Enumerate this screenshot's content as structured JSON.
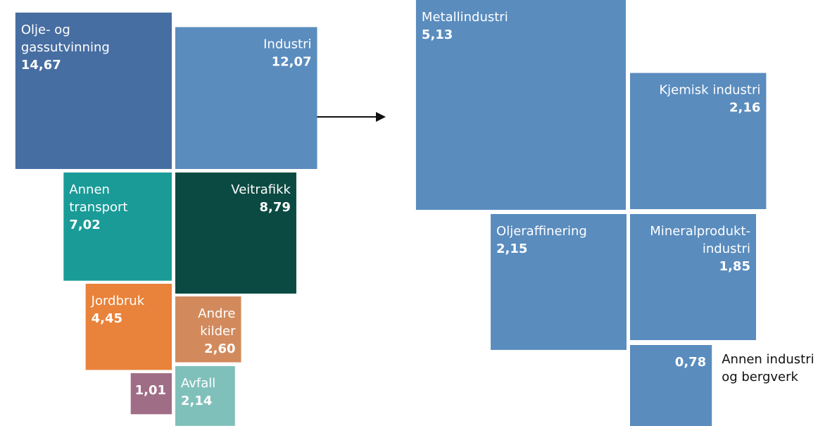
{
  "chart_data": [
    {
      "type": "square-area",
      "categories": [
        [
          "Olje- og",
          "gassutvinning"
        ],
        [
          "Industri"
        ],
        [
          "Annen",
          "transport"
        ],
        [
          "Veitrafikk"
        ],
        [
          "Jordbruk"
        ],
        [
          "Andre",
          "kilder"
        ],
        null,
        [
          "Avfall"
        ]
      ],
      "values": [
        14.67,
        12.07,
        7.02,
        8.79,
        4.45,
        2.6,
        1.01,
        2.14
      ],
      "value_labels": [
        "14,67",
        "12,07",
        "7,02",
        "8,79",
        "4,45",
        "2,60",
        "1,01",
        "2,14"
      ],
      "colors": [
        "#476ea2",
        "#5a8cbe",
        "#1a9b97",
        "#0b4a42",
        "#e9823a",
        "#d28a5d",
        "#a06d86",
        "#80c0bb"
      ]
    },
    {
      "type": "square-area",
      "categories": [
        [
          "Metallindustri"
        ],
        [
          "Kjemisk industri"
        ],
        [
          "Oljeraffinering"
        ],
        [
          "Mineralprodukt-",
          "industri"
        ],
        [
          "Annen industri",
          "og bergverk"
        ]
      ],
      "values": [
        5.13,
        2.16,
        2.15,
        1.85,
        0.78
      ],
      "value_labels": [
        "5,13",
        "2,16",
        "2,15",
        "1,85",
        "0,78"
      ],
      "color": "#5a8cbe"
    }
  ]
}
